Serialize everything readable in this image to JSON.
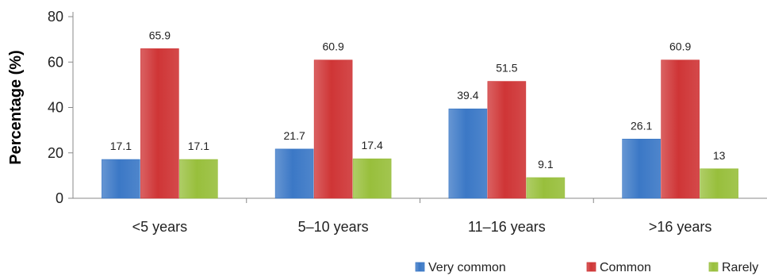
{
  "chart_data": {
    "type": "bar",
    "title": "",
    "xlabel": "",
    "ylabel": "Percentage (%)",
    "ylim": [
      0,
      80
    ],
    "yticks": [
      0,
      20,
      40,
      60,
      80
    ],
    "categories": [
      "<5 years",
      "5–10 years",
      "11–16 years",
      ">16 years"
    ],
    "series": [
      {
        "name": "Very common",
        "values": [
          17.1,
          21.7,
          39.4,
          26.1
        ],
        "labels": [
          "17.1",
          "21.7",
          "39.4",
          "26.1"
        ],
        "color": "#3b78c6"
      },
      {
        "name": "Common",
        "values": [
          65.9,
          60.9,
          51.5,
          60.9
        ],
        "labels": [
          "65.9",
          "60.9",
          "51.5",
          "60.9"
        ],
        "color": "#cf3536"
      },
      {
        "name": "Rarely",
        "values": [
          17.1,
          17.4,
          9.1,
          13
        ],
        "labels": [
          "17.1",
          "17.4",
          "9.1",
          "13"
        ],
        "color": "#98bf3c"
      }
    ],
    "grid": false,
    "legend_position": "bottom-right"
  }
}
